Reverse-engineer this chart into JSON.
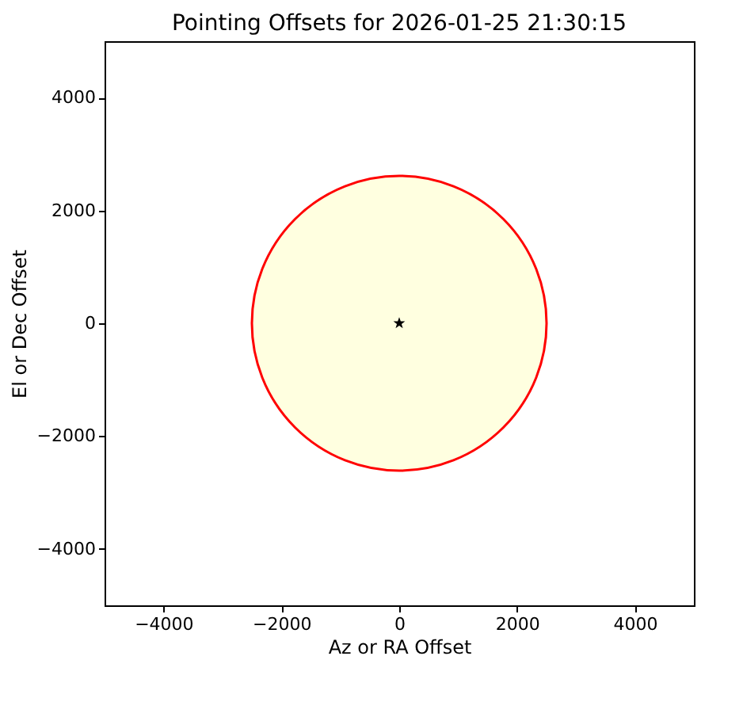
{
  "chart_data": {
    "type": "scatter",
    "title": "Pointing Offsets for 2026-01-25 21:30:15",
    "xlabel": "Az or RA Offset",
    "ylabel": "El or Dec Offset",
    "xlim": [
      -5000,
      5000
    ],
    "ylim": [
      -5000,
      5000
    ],
    "xticks": [
      {
        "value": -4000,
        "label": "−4000"
      },
      {
        "value": -2000,
        "label": "−2000"
      },
      0,
      2000,
      4000
    ],
    "yticks": [
      {
        "value": -4000,
        "label": "−4000"
      },
      {
        "value": -2000,
        "label": "−2000"
      },
      0,
      2000,
      4000
    ],
    "grid": false,
    "series": [
      {
        "color": "#000000",
        "marker": "star",
        "x": [
          0
        ],
        "values": [
          0
        ]
      }
    ]
  }
}
